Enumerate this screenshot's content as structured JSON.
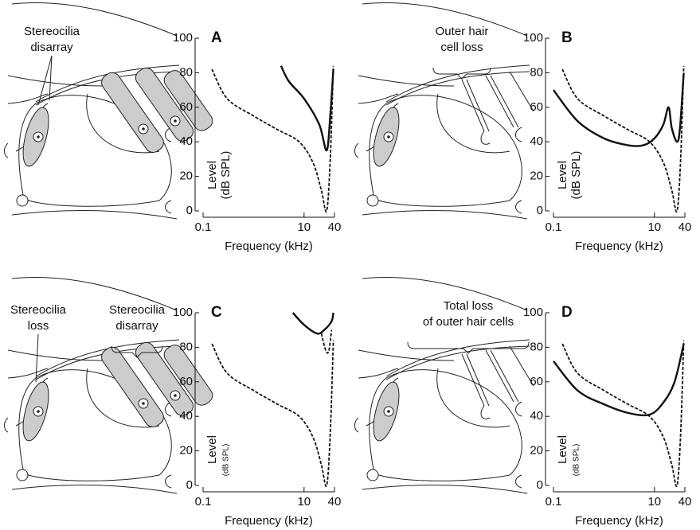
{
  "chart_data": [
    {
      "type": "line",
      "panel": "A",
      "annotations": [
        {
          "lines": [
            "Stereocilia",
            "disarray"
          ]
        }
      ],
      "xlabel": "Frequency (kHz)",
      "ylabel": "Level",
      "ylabel_unit": "(dB SPL)",
      "xscale": "log",
      "xlim": [
        0.1,
        40
      ],
      "xticks": [
        0.1,
        10,
        40
      ],
      "ylim": [
        0,
        100
      ],
      "yticks": [
        0,
        20,
        40,
        60,
        80,
        100
      ],
      "series": [
        {
          "style": "dashed",
          "color": "#111111",
          "x": [
            0.15,
            0.3,
            1,
            3,
            8,
            15,
            22,
            28,
            33,
            38
          ],
          "values": [
            82,
            65,
            55,
            47,
            40,
            28,
            12,
            0,
            30,
            84
          ]
        },
        {
          "style": "solid",
          "color": "#111111",
          "x": [
            3.5,
            5,
            10,
            20,
            28,
            33,
            38
          ],
          "values": [
            84,
            75,
            65,
            50,
            35,
            55,
            82
          ]
        }
      ]
    },
    {
      "type": "line",
      "panel": "B",
      "annotations": [
        {
          "lines": [
            "Outer hair",
            "cell loss"
          ]
        }
      ],
      "xlabel": "Frequency (kHz)",
      "ylabel": "Level",
      "ylabel_unit": "(dB SPL)",
      "xscale": "log",
      "xlim": [
        0.1,
        40
      ],
      "xticks": [
        0.1,
        10,
        40
      ],
      "ylim": [
        0,
        100
      ],
      "yticks": [
        0,
        20,
        40,
        60,
        80,
        100
      ],
      "series": [
        {
          "style": "dashed",
          "color": "#111111",
          "x": [
            0.15,
            0.3,
            1,
            3,
            8,
            15,
            22,
            28,
            33,
            38
          ],
          "values": [
            82,
            65,
            55,
            47,
            40,
            28,
            12,
            0,
            30,
            84
          ]
        },
        {
          "style": "solid",
          "color": "#111111",
          "x": [
            0.1,
            0.3,
            1,
            3,
            6,
            10,
            15,
            19,
            22,
            28,
            32,
            38
          ],
          "values": [
            70,
            52,
            42,
            38,
            38,
            42,
            50,
            60,
            48,
            40,
            48,
            80
          ]
        }
      ]
    },
    {
      "type": "line",
      "panel": "C",
      "annotations": [
        {
          "lines": [
            "Stereocilia",
            "loss"
          ]
        },
        {
          "lines": [
            "Stereocilia",
            "disarray"
          ]
        }
      ],
      "xlabel": "Frequency (kHz)",
      "ylabel": "Level",
      "ylabel_unit": "(dB SPL)",
      "xscale": "log",
      "xlim": [
        0.1,
        40
      ],
      "xticks": [
        0.1,
        10,
        40
      ],
      "ylim": [
        0,
        100
      ],
      "yticks": [
        0,
        20,
        40,
        60,
        80,
        100
      ],
      "series": [
        {
          "style": "dashed",
          "color": "#111111",
          "x": [
            0.15,
            0.3,
            1,
            3,
            8,
            15,
            22,
            28,
            33,
            38
          ],
          "values": [
            82,
            65,
            55,
            47,
            40,
            28,
            12,
            0,
            30,
            84
          ]
        },
        {
          "style": "dashed",
          "color": "#111111",
          "x": [
            22,
            27,
            31,
            35
          ],
          "values": [
            88,
            78,
            78,
            90
          ]
        },
        {
          "style": "solid",
          "color": "#111111",
          "x": [
            6,
            10,
            18,
            25,
            35,
            38
          ],
          "values": [
            100,
            93,
            88,
            90,
            95,
            100
          ]
        }
      ]
    },
    {
      "type": "line",
      "panel": "D",
      "annotations": [
        {
          "lines": [
            "Total loss",
            "of outer hair cells"
          ]
        }
      ],
      "xlabel": "Frequency (kHz)",
      "ylabel": "Level",
      "ylabel_unit": "(dB SPL)",
      "xscale": "log",
      "xlim": [
        0.1,
        40
      ],
      "xticks": [
        0.1,
        10,
        40
      ],
      "ylim": [
        0,
        100
      ],
      "yticks": [
        0,
        20,
        40,
        60,
        80,
        100
      ],
      "series": [
        {
          "style": "dashed",
          "color": "#111111",
          "x": [
            0.15,
            0.3,
            1,
            3,
            8,
            15,
            22,
            28,
            33,
            38
          ],
          "values": [
            82,
            65,
            55,
            47,
            40,
            28,
            12,
            0,
            30,
            84
          ]
        },
        {
          "style": "solid",
          "color": "#111111",
          "x": [
            0.1,
            0.3,
            1,
            3,
            8,
            15,
            25,
            38
          ],
          "values": [
            72,
            55,
            47,
            42,
            41,
            48,
            60,
            82
          ]
        }
      ]
    }
  ]
}
